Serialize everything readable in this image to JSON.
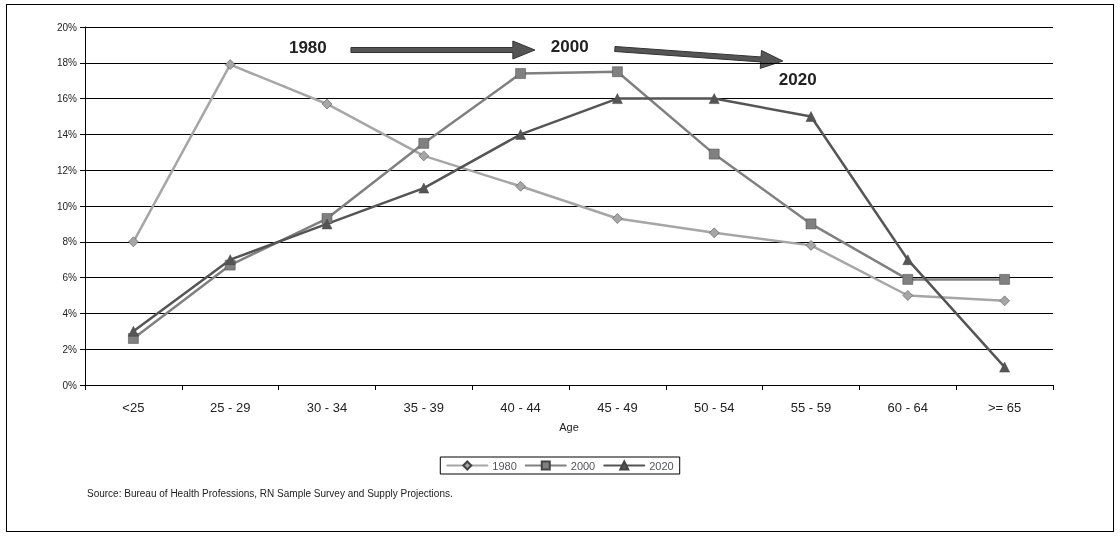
{
  "chart_data": {
    "type": "line",
    "xlabel": "Age",
    "categories": [
      "<25",
      "25 - 29",
      "30 - 34",
      "35 - 39",
      "40 - 44",
      "45 - 49",
      "50 - 54",
      "55 - 59",
      "60 - 64",
      ">= 65"
    ],
    "series": [
      {
        "name": "1980",
        "color": "#a6a6a6",
        "marker": "diamond",
        "values": [
          8,
          17.9,
          15.7,
          12.8,
          11.1,
          9.3,
          8.5,
          7.8,
          5,
          4.7
        ]
      },
      {
        "name": "2000",
        "color": "#808080",
        "marker": "square",
        "values": [
          2.6,
          6.7,
          9.3,
          13.5,
          17.4,
          17.5,
          12.9,
          9,
          5.9,
          5.9
        ]
      },
      {
        "name": "2020",
        "color": "#555555",
        "marker": "triangle",
        "values": [
          3,
          7,
          9,
          11,
          14,
          16,
          16,
          15,
          7,
          1
        ]
      }
    ],
    "ylim": [
      0,
      20
    ],
    "yticks": [
      {
        "value": 0,
        "label": "0%"
      },
      {
        "value": 2,
        "label": "2%"
      },
      {
        "value": 4,
        "label": "4%"
      },
      {
        "value": 6,
        "label": "6%"
      },
      {
        "value": 8,
        "label": "8%"
      },
      {
        "value": 10,
        "label": "10%"
      },
      {
        "value": 12,
        "label": "12%"
      },
      {
        "value": 14,
        "label": "14%"
      },
      {
        "value": 16,
        "label": "16%"
      },
      {
        "value": 18,
        "label": "18%"
      },
      {
        "value": 20,
        "label": "20%"
      }
    ],
    "grid": "y",
    "legend": "bottom",
    "annotations": [
      "1980",
      "2000",
      "2020",
      "Source: Bureau of Health Professions, RN Sample Survey and Supply Projections."
    ]
  }
}
